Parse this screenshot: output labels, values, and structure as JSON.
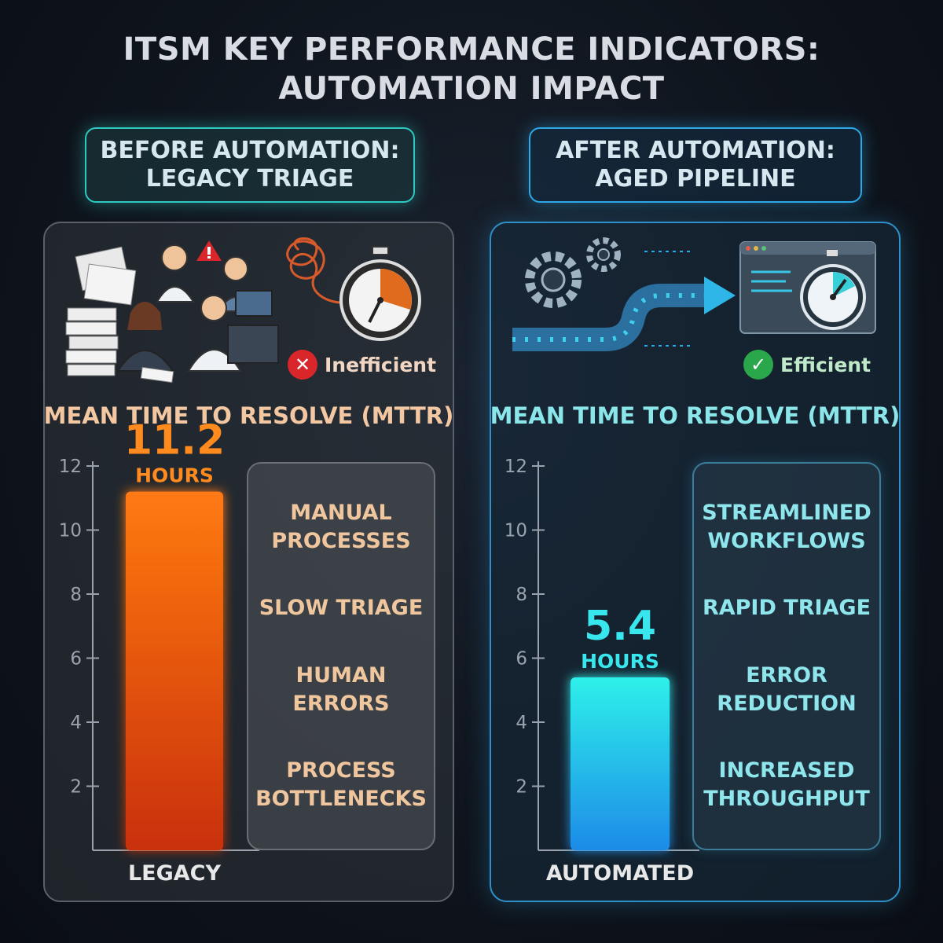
{
  "title": {
    "line1": "ITSM KEY PERFORMANCE INDICATORS:",
    "line2": "AUTOMATION IMPACT"
  },
  "left": {
    "header": {
      "line1": "BEFORE AUTOMATION:",
      "line2": "LEGACY TRIAGE"
    },
    "status": {
      "label": "Inefficient",
      "icon": "x-icon",
      "color": "#d8262b"
    },
    "metric_label": "MEAN TIME TO RESOLVE (MTTR)",
    "value_label": "11.2",
    "unit_label": "HOURS",
    "category_label": "LEGACY",
    "factors": [
      {
        "line1": "MANUAL",
        "line2": "PROCESSES"
      },
      {
        "line1": "SLOW TRIAGE",
        "line2": ""
      },
      {
        "line1": "HUMAN",
        "line2": "ERRORS"
      },
      {
        "line1": "PROCESS",
        "line2": "BOTTLENECKS"
      }
    ]
  },
  "right": {
    "header": {
      "line1": "AFTER AUTOMATION:",
      "line2": "AGED PIPELINE"
    },
    "status": {
      "label": "Efficient",
      "icon": "check-icon",
      "color": "#2aa64b"
    },
    "metric_label": "MEAN TIME TO RESOLVE (MTTR)",
    "value_label": "5.4",
    "unit_label": "HOURS",
    "category_label": "AUTOMATED",
    "factors": [
      {
        "line1": "STREAMLINED",
        "line2": "WORKFLOWS"
      },
      {
        "line1": "RAPID TRIAGE",
        "line2": ""
      },
      {
        "line1": "ERROR",
        "line2": "REDUCTION"
      },
      {
        "line1": "INCREASED",
        "line2": "THROUGHPUT"
      }
    ]
  },
  "chart_data": [
    {
      "type": "bar",
      "categories": [
        "LEGACY"
      ],
      "values": [
        11.2
      ],
      "ylabel": "",
      "ylim": [
        0,
        12
      ],
      "yticks": [
        2,
        4,
        6,
        8,
        10,
        12
      ],
      "bar_color": "#f06a10",
      "title": "MEAN TIME TO RESOLVE (MTTR)"
    },
    {
      "type": "bar",
      "categories": [
        "AUTOMATED"
      ],
      "values": [
        5.4
      ],
      "ylabel": "",
      "ylim": [
        0,
        12
      ],
      "yticks": [
        2,
        4,
        6,
        8,
        10,
        12
      ],
      "bar_color": "#20d8e8",
      "title": "MEAN TIME TO RESOLVE (MTTR)"
    }
  ]
}
